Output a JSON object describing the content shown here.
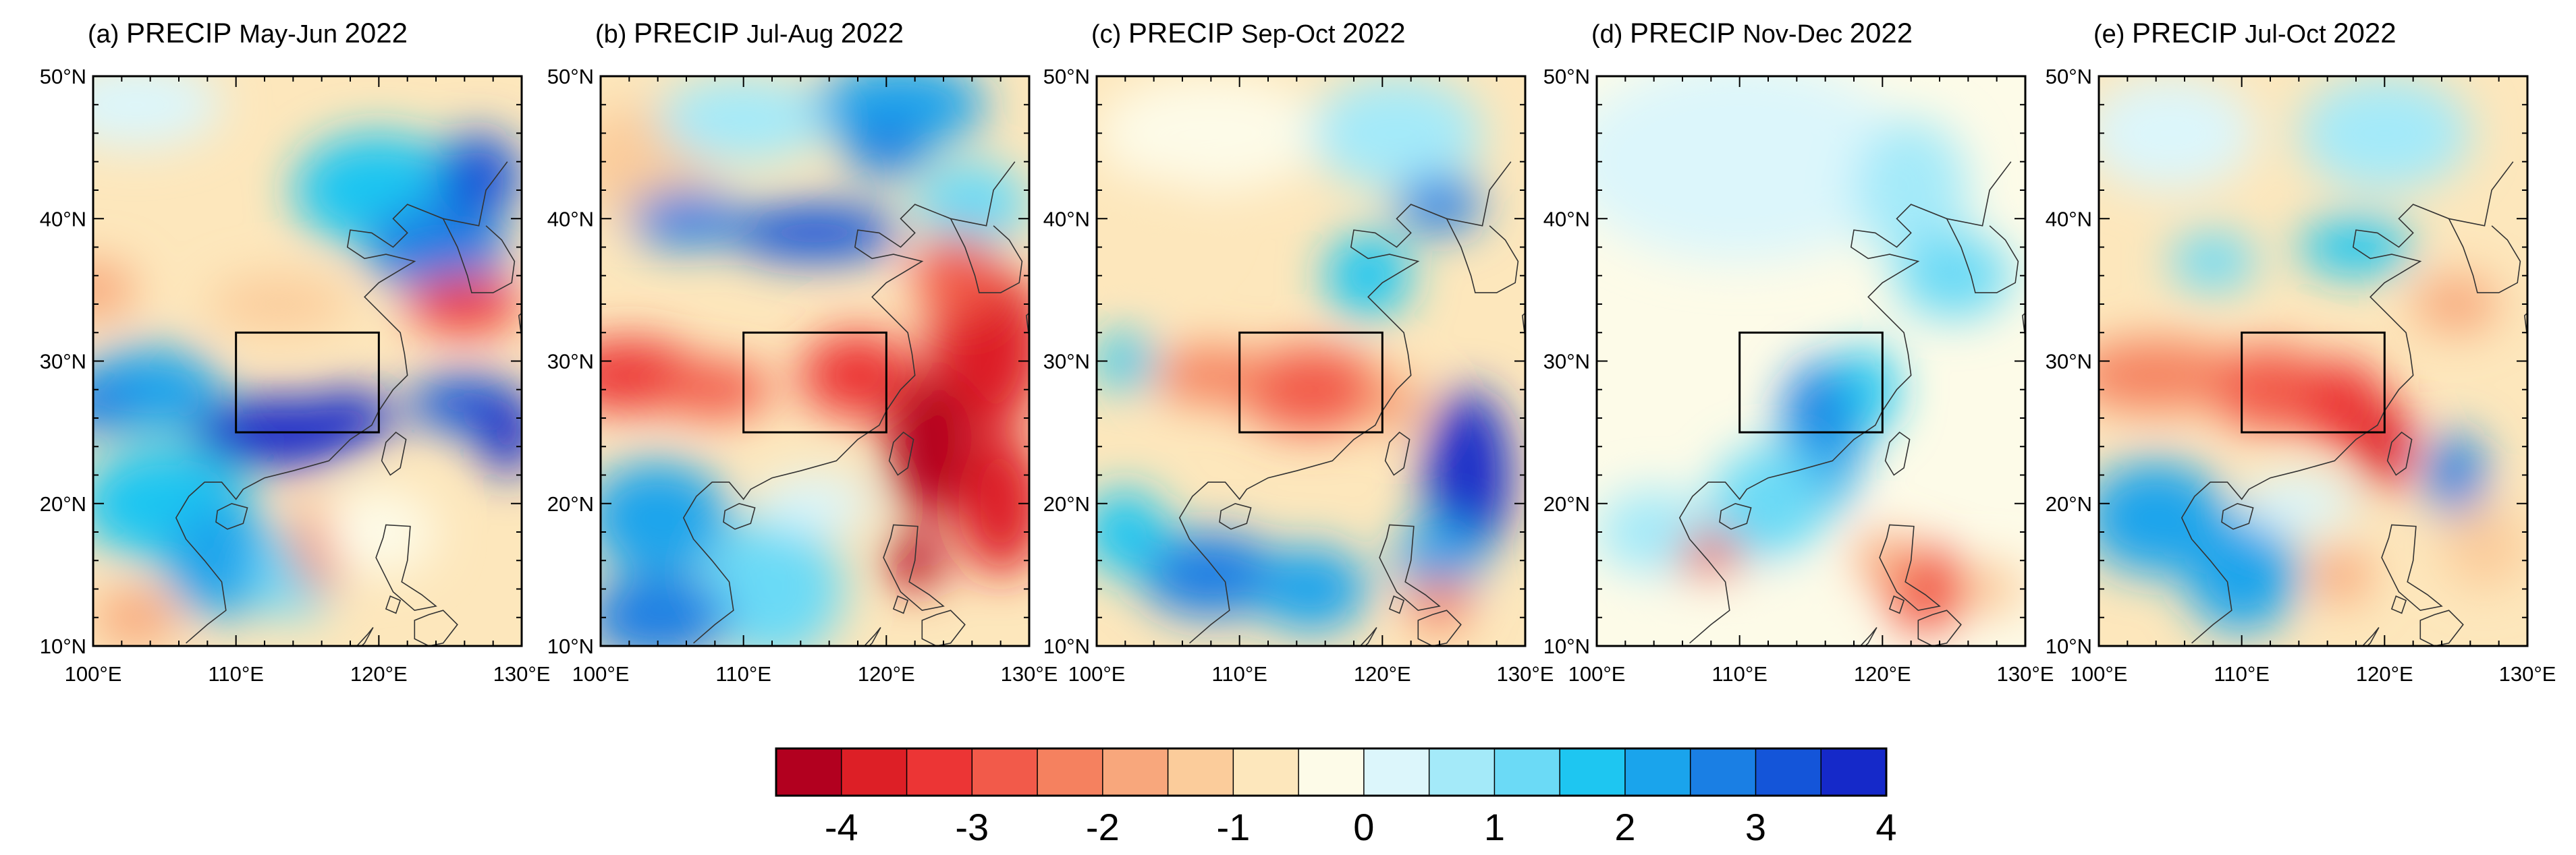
{
  "figure": {
    "panels": [
      {
        "label": "(a)",
        "variable": "PRECIP",
        "period": "May-Jun",
        "year": "2022",
        "scheme": "a"
      },
      {
        "label": "(b)",
        "variable": "PRECIP",
        "period": "Jul-Aug",
        "year": "2022",
        "scheme": "b"
      },
      {
        "label": "(c)",
        "variable": "PRECIP",
        "period": "Sep-Oct",
        "year": "2022",
        "scheme": "c"
      },
      {
        "label": "(d)",
        "variable": "PRECIP",
        "period": "Nov-Dec",
        "year": "2022",
        "scheme": "d"
      },
      {
        "label": "(e)",
        "variable": "PRECIP",
        "period": "Jul-Oct",
        "year": "2022",
        "scheme": "e"
      }
    ],
    "map_extent": {
      "lon_range": [
        100,
        130
      ],
      "lat_range": [
        10,
        50
      ]
    },
    "x_ticks": [
      "100°E",
      "110°E",
      "120°E",
      "130°E"
    ],
    "y_ticks": [
      "10°N",
      "20°N",
      "30°N",
      "40°N",
      "50°N"
    ],
    "region_box": {
      "lon": [
        110,
        120
      ],
      "lat": [
        25,
        32
      ]
    },
    "colorbar": {
      "colors": [
        "#b2001f",
        "#dd1f26",
        "#ec3535",
        "#f25a4a",
        "#f5815f",
        "#f8a77c",
        "#fbcc9b",
        "#fde7bc",
        "#fdfbe8",
        "#dcf6fb",
        "#a4eaf9",
        "#6bdaf6",
        "#1ec6f1",
        "#1aa4ec",
        "#1a7fe4",
        "#1455d9",
        "#1529c9"
      ],
      "tick_labels": [
        "-4",
        "-3",
        "-2",
        "-1",
        "0",
        "1",
        "2",
        "3",
        "4"
      ]
    }
  }
}
